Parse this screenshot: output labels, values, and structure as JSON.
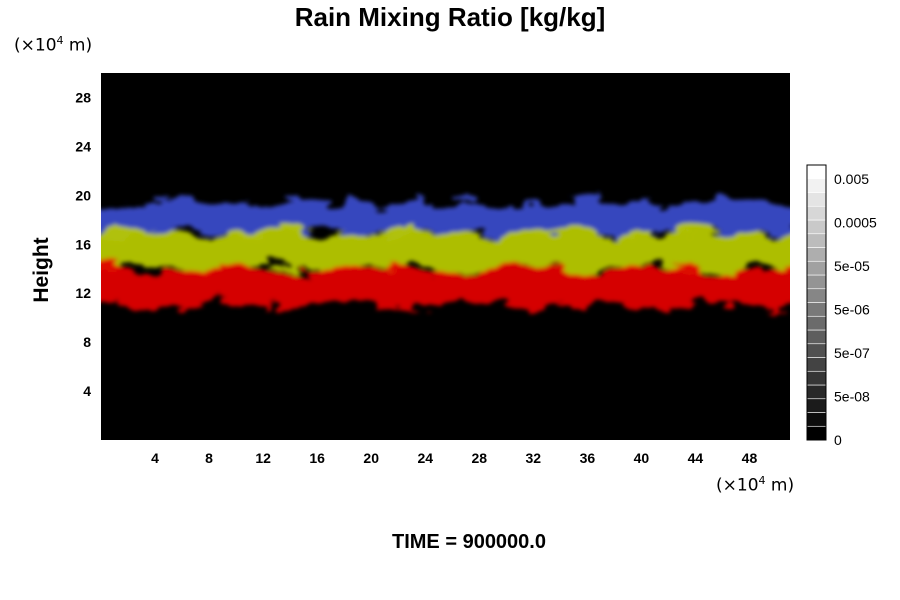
{
  "chart_data": {
    "type": "heatmap",
    "title": "Rain Mixing Ratio [kg/kg]",
    "xlabel": "",
    "ylabel": "Height",
    "x_unit_label": "(×10⁴ m)",
    "y_unit_label": "(×10⁴ m)",
    "xlim": [
      0,
      51
    ],
    "ylim": [
      0,
      30
    ],
    "x_ticks": [
      4,
      8,
      12,
      16,
      20,
      24,
      28,
      32,
      36,
      40,
      44,
      48
    ],
    "y_ticks": [
      4,
      8,
      12,
      16,
      20,
      24,
      28
    ],
    "bands": [
      {
        "color": "#3a4cc8",
        "y_range": [
          16.5,
          19.8
        ],
        "description": "blue"
      },
      {
        "color": "#b6c800",
        "y_range": [
          13.5,
          17.5
        ],
        "description": "yellow-green"
      },
      {
        "color": "#e00000",
        "y_range": [
          10.5,
          14.5
        ],
        "description": "red"
      }
    ],
    "background_color": "#000000",
    "colorbar": {
      "labels": [
        "0.005",
        "0.0005",
        "5e-05",
        "5e-06",
        "5e-07",
        "5e-08",
        "0"
      ],
      "levels": 20,
      "color_low": "#000000",
      "color_high": "#ffffff"
    },
    "grid": false,
    "legend": "right"
  },
  "footer": {
    "time_label": "TIME = 900000.0"
  }
}
